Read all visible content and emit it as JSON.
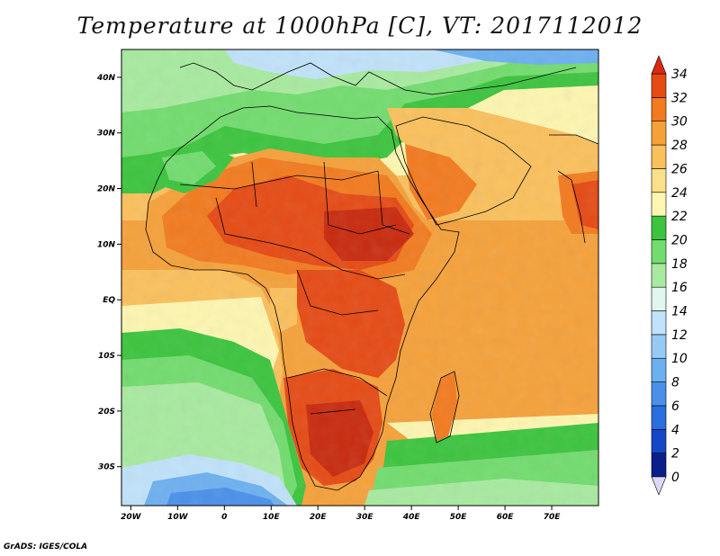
{
  "title": "Temperature at 1000hPa [C], VT: 2017112012",
  "credit": "GrADS: IGES/COLA",
  "map": {
    "lon_range": [
      -22,
      80
    ],
    "lat_range": [
      -37,
      45
    ],
    "lon_ticks": [
      {
        "value": -20,
        "label": "20W"
      },
      {
        "value": -10,
        "label": "10W"
      },
      {
        "value": 0,
        "label": "0"
      },
      {
        "value": 10,
        "label": "10E"
      },
      {
        "value": 20,
        "label": "20E"
      },
      {
        "value": 30,
        "label": "30E"
      },
      {
        "value": 40,
        "label": "40E"
      },
      {
        "value": 50,
        "label": "50E"
      },
      {
        "value": 60,
        "label": "60E"
      },
      {
        "value": 70,
        "label": "70E"
      }
    ],
    "lat_ticks": [
      {
        "value": 40,
        "label": "40N"
      },
      {
        "value": 30,
        "label": "30N"
      },
      {
        "value": 20,
        "label": "20N"
      },
      {
        "value": 10,
        "label": "10N"
      },
      {
        "value": 0,
        "label": "EQ"
      },
      {
        "value": -10,
        "label": "10S"
      },
      {
        "value": -20,
        "label": "20S"
      },
      {
        "value": -30,
        "label": "30S"
      }
    ]
  },
  "colorbar": {
    "levels": [
      0,
      2,
      4,
      6,
      8,
      10,
      12,
      14,
      16,
      18,
      20,
      22,
      24,
      26,
      28,
      30,
      32,
      34
    ],
    "colors": [
      "#0a1f8a",
      "#1546c8",
      "#2a6fe0",
      "#4a90ea",
      "#6db0f0",
      "#96caf5",
      "#c0e2fa",
      "#e0f6ee",
      "#a8eaa0",
      "#72dc6e",
      "#3cc43e",
      "#fdf6b0",
      "#fbe08a",
      "#fac05c",
      "#f5a13a",
      "#f27a1f",
      "#e54a14",
      "#c82a0e",
      "#e02814"
    ],
    "under_color": "#dcd8f5",
    "over_color": "#d92a10"
  }
}
